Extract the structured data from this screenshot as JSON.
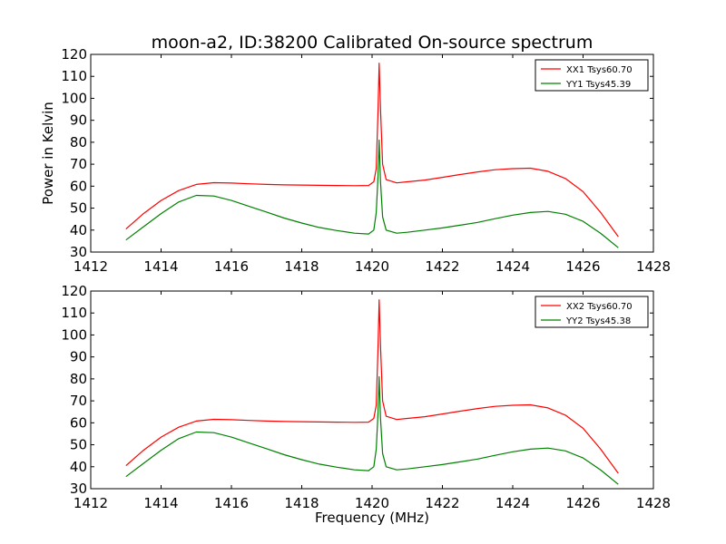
{
  "figure": {
    "title": "moon-a2, ID:38200 Calibrated On-source spectrum",
    "ylabel": "Power in Kelvin",
    "xlabel": "Frequency (MHz)"
  },
  "colors": {
    "xx": "#ff0000",
    "yy": "#008000",
    "axes": "#000000",
    "background": "#ffffff"
  },
  "chart_data": [
    {
      "type": "line",
      "title": "moon-a2, ID:38200 Calibrated On-source spectrum",
      "xlabel": "",
      "ylabel": "Power in Kelvin",
      "xlim": [
        1412,
        1428
      ],
      "ylim": [
        30,
        120
      ],
      "xticks": [
        1412,
        1414,
        1416,
        1418,
        1420,
        1422,
        1424,
        1426,
        1428
      ],
      "yticks": [
        30,
        40,
        50,
        60,
        70,
        80,
        90,
        100,
        110,
        120
      ],
      "grid": false,
      "legend_position": "top-right",
      "series": [
        {
          "name": "XX1 Tsys60.70",
          "color": "#ff0000",
          "points": [
            [
              1413.0,
              40.5
            ],
            [
              1413.5,
              47.5
            ],
            [
              1414.0,
              53.5
            ],
            [
              1414.5,
              58.0
            ],
            [
              1415.0,
              60.8
            ],
            [
              1415.5,
              61.6
            ],
            [
              1416.0,
              61.4
            ],
            [
              1416.5,
              61.1
            ],
            [
              1417.0,
              60.8
            ],
            [
              1417.5,
              60.6
            ],
            [
              1418.0,
              60.5
            ],
            [
              1418.5,
              60.4
            ],
            [
              1419.0,
              60.3
            ],
            [
              1419.5,
              60.2
            ],
            [
              1419.9,
              60.3
            ],
            [
              1420.05,
              62.0
            ],
            [
              1420.12,
              68.0
            ],
            [
              1420.17,
              95.0
            ],
            [
              1420.2,
              116.0
            ],
            [
              1420.24,
              95.0
            ],
            [
              1420.3,
              70.0
            ],
            [
              1420.4,
              63.0
            ],
            [
              1420.7,
              61.5
            ],
            [
              1421.0,
              62.0
            ],
            [
              1421.5,
              62.8
            ],
            [
              1422.0,
              64.0
            ],
            [
              1422.5,
              65.3
            ],
            [
              1423.0,
              66.5
            ],
            [
              1423.5,
              67.5
            ],
            [
              1424.0,
              68.0
            ],
            [
              1424.5,
              68.2
            ],
            [
              1425.0,
              66.8
            ],
            [
              1425.5,
              63.5
            ],
            [
              1426.0,
              57.5
            ],
            [
              1426.5,
              48.0
            ],
            [
              1427.0,
              37.0
            ]
          ]
        },
        {
          "name": "YY1 Tsys45.39",
          "color": "#008000",
          "points": [
            [
              1413.0,
              35.5
            ],
            [
              1413.5,
              41.5
            ],
            [
              1414.0,
              47.5
            ],
            [
              1414.5,
              52.8
            ],
            [
              1415.0,
              55.8
            ],
            [
              1415.5,
              55.5
            ],
            [
              1416.0,
              53.5
            ],
            [
              1416.5,
              50.8
            ],
            [
              1417.0,
              48.2
            ],
            [
              1417.5,
              45.5
            ],
            [
              1418.0,
              43.2
            ],
            [
              1418.5,
              41.2
            ],
            [
              1419.0,
              39.8
            ],
            [
              1419.5,
              38.6
            ],
            [
              1419.9,
              38.2
            ],
            [
              1420.05,
              40.0
            ],
            [
              1420.12,
              48.0
            ],
            [
              1420.17,
              65.0
            ],
            [
              1420.2,
              81.0
            ],
            [
              1420.24,
              62.0
            ],
            [
              1420.3,
              46.0
            ],
            [
              1420.4,
              40.0
            ],
            [
              1420.7,
              38.6
            ],
            [
              1421.0,
              39.0
            ],
            [
              1421.5,
              40.0
            ],
            [
              1422.0,
              41.0
            ],
            [
              1422.5,
              42.2
            ],
            [
              1423.0,
              43.5
            ],
            [
              1423.5,
              45.2
            ],
            [
              1424.0,
              46.8
            ],
            [
              1424.5,
              48.0
            ],
            [
              1425.0,
              48.5
            ],
            [
              1425.5,
              47.2
            ],
            [
              1426.0,
              44.0
            ],
            [
              1426.5,
              38.5
            ],
            [
              1427.0,
              32.0
            ]
          ]
        }
      ]
    },
    {
      "type": "line",
      "title": "",
      "xlabel": "Frequency (MHz)",
      "ylabel": "",
      "xlim": [
        1412,
        1428
      ],
      "ylim": [
        30,
        120
      ],
      "xticks": [
        1412,
        1414,
        1416,
        1418,
        1420,
        1422,
        1424,
        1426,
        1428
      ],
      "yticks": [
        30,
        40,
        50,
        60,
        70,
        80,
        90,
        100,
        110,
        120
      ],
      "grid": false,
      "legend_position": "top-right",
      "series": [
        {
          "name": "XX2 Tsys60.70",
          "color": "#ff0000",
          "points": [
            [
              1413.0,
              40.5
            ],
            [
              1413.5,
              47.5
            ],
            [
              1414.0,
              53.5
            ],
            [
              1414.5,
              58.0
            ],
            [
              1415.0,
              60.8
            ],
            [
              1415.5,
              61.6
            ],
            [
              1416.0,
              61.4
            ],
            [
              1416.5,
              61.1
            ],
            [
              1417.0,
              60.8
            ],
            [
              1417.5,
              60.6
            ],
            [
              1418.0,
              60.5
            ],
            [
              1418.5,
              60.4
            ],
            [
              1419.0,
              60.3
            ],
            [
              1419.5,
              60.2
            ],
            [
              1419.9,
              60.3
            ],
            [
              1420.05,
              62.0
            ],
            [
              1420.12,
              68.0
            ],
            [
              1420.17,
              95.0
            ],
            [
              1420.2,
              116.0
            ],
            [
              1420.24,
              95.0
            ],
            [
              1420.3,
              70.0
            ],
            [
              1420.4,
              63.0
            ],
            [
              1420.7,
              61.5
            ],
            [
              1421.0,
              62.0
            ],
            [
              1421.5,
              62.8
            ],
            [
              1422.0,
              64.0
            ],
            [
              1422.5,
              65.3
            ],
            [
              1423.0,
              66.5
            ],
            [
              1423.5,
              67.5
            ],
            [
              1424.0,
              68.0
            ],
            [
              1424.5,
              68.2
            ],
            [
              1425.0,
              66.8
            ],
            [
              1425.5,
              63.5
            ],
            [
              1426.0,
              57.5
            ],
            [
              1426.5,
              48.0
            ],
            [
              1427.0,
              37.0
            ]
          ]
        },
        {
          "name": "YY2 Tsys45.38",
          "color": "#008000",
          "points": [
            [
              1413.0,
              35.5
            ],
            [
              1413.5,
              41.5
            ],
            [
              1414.0,
              47.5
            ],
            [
              1414.5,
              52.8
            ],
            [
              1415.0,
              55.8
            ],
            [
              1415.5,
              55.5
            ],
            [
              1416.0,
              53.5
            ],
            [
              1416.5,
              50.8
            ],
            [
              1417.0,
              48.2
            ],
            [
              1417.5,
              45.5
            ],
            [
              1418.0,
              43.2
            ],
            [
              1418.5,
              41.2
            ],
            [
              1419.0,
              39.8
            ],
            [
              1419.5,
              38.6
            ],
            [
              1419.9,
              38.2
            ],
            [
              1420.05,
              40.0
            ],
            [
              1420.12,
              48.0
            ],
            [
              1420.17,
              65.0
            ],
            [
              1420.2,
              81.0
            ],
            [
              1420.24,
              62.0
            ],
            [
              1420.3,
              46.0
            ],
            [
              1420.4,
              40.0
            ],
            [
              1420.7,
              38.6
            ],
            [
              1421.0,
              39.0
            ],
            [
              1421.5,
              40.0
            ],
            [
              1422.0,
              41.0
            ],
            [
              1422.5,
              42.2
            ],
            [
              1423.0,
              43.5
            ],
            [
              1423.5,
              45.2
            ],
            [
              1424.0,
              46.8
            ],
            [
              1424.5,
              48.0
            ],
            [
              1425.0,
              48.5
            ],
            [
              1425.5,
              47.2
            ],
            [
              1426.0,
              44.0
            ],
            [
              1426.5,
              38.5
            ],
            [
              1427.0,
              32.0
            ]
          ]
        }
      ]
    }
  ]
}
